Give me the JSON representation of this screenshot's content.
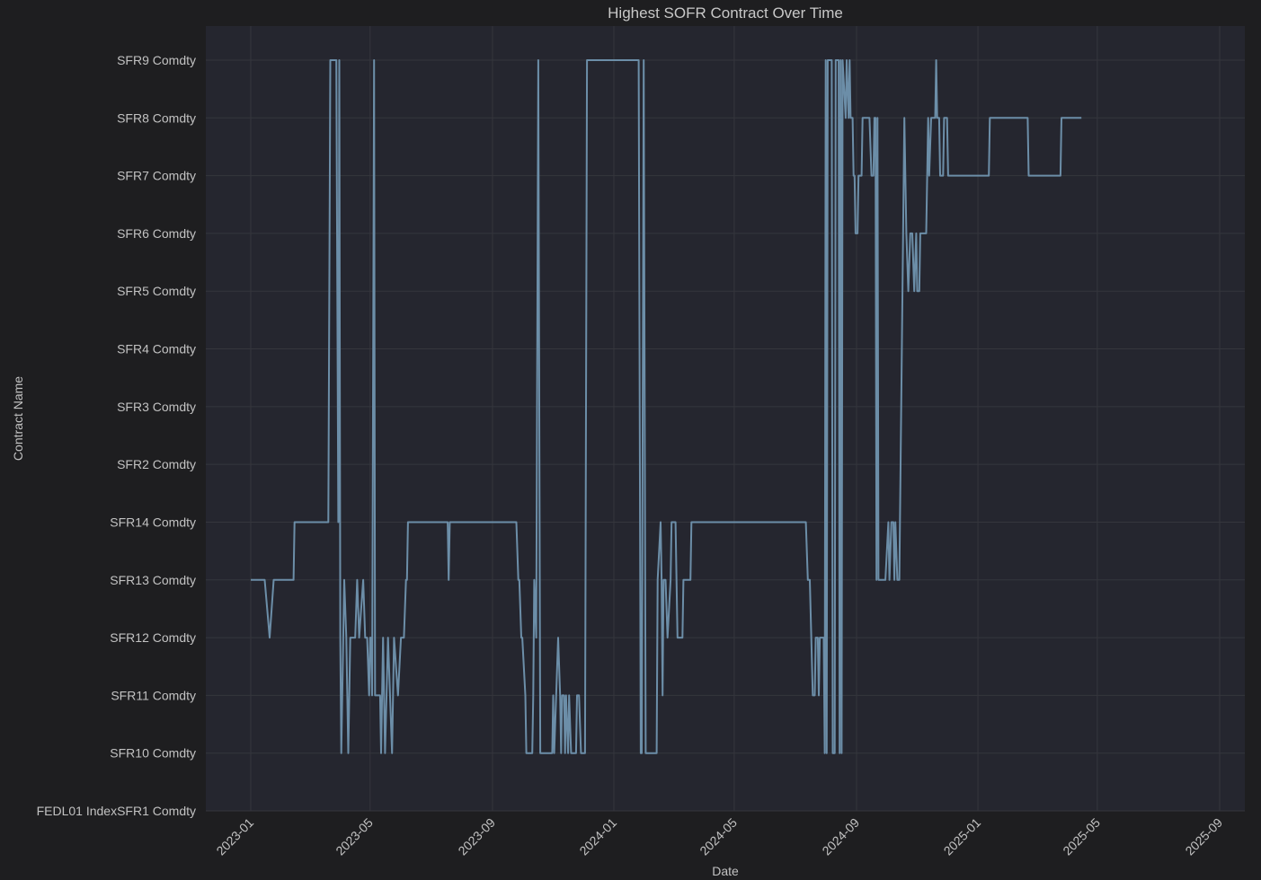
{
  "chart_data": {
    "type": "line",
    "title": "Highest SOFR Contract Over Time",
    "xlabel": "Date",
    "ylabel": "Contract Name",
    "x_axis_type": "date",
    "x_range": [
      "2022-12-01",
      "2025-09-10"
    ],
    "x_ticks": [
      "2023-01",
      "2023-05",
      "2023-09",
      "2024-01",
      "2024-05",
      "2024-09",
      "2025-01",
      "2025-05",
      "2025-09"
    ],
    "y_axis_type": "category",
    "categories": [
      "FEDL01   IndexSFR1 Comdty",
      "SFR10 Comdty",
      "SFR11 Comdty",
      "SFR12 Comdty",
      "SFR13 Comdty",
      "SFR14 Comdty",
      "SFR2 Comdty",
      "SFR3 Comdty",
      "SFR4 Comdty",
      "SFR5 Comdty",
      "SFR6 Comdty",
      "SFR7 Comdty",
      "SFR8 Comdty",
      "SFR9 Comdty"
    ],
    "grid": true,
    "legend": "none",
    "colors": {
      "line": "#6c8ea8",
      "plot_background": "#25262f",
      "figure_background": "#1e1e20",
      "grid": "#35363d",
      "text": "#c2c2c2"
    },
    "series": [
      {
        "points": [
          [
            "2023-01-01",
            "SFR13 Comdty"
          ],
          [
            "2023-01-15",
            "SFR13 Comdty"
          ],
          [
            "2023-01-20",
            "SFR12 Comdty"
          ],
          [
            "2023-01-24",
            "SFR13 Comdty"
          ],
          [
            "2023-02-13",
            "SFR13 Comdty"
          ],
          [
            "2023-02-14",
            "SFR14 Comdty"
          ],
          [
            "2023-03-20",
            "SFR14 Comdty"
          ],
          [
            "2023-03-22",
            "SFR9 Comdty"
          ],
          [
            "2023-03-28",
            "SFR9 Comdty"
          ],
          [
            "2023-03-30",
            "SFR14 Comdty"
          ],
          [
            "2023-03-31",
            "SFR9 Comdty"
          ],
          [
            "2023-04-01",
            "SFR12 Comdty"
          ],
          [
            "2023-04-02",
            "SFR10 Comdty"
          ],
          [
            "2023-04-04",
            "SFR12 Comdty"
          ],
          [
            "2023-04-05",
            "SFR13 Comdty"
          ],
          [
            "2023-04-07",
            "SFR12 Comdty"
          ],
          [
            "2023-04-09",
            "SFR10 Comdty"
          ],
          [
            "2023-04-11",
            "SFR12 Comdty"
          ],
          [
            "2023-04-16",
            "SFR12 Comdty"
          ],
          [
            "2023-04-18",
            "SFR13 Comdty"
          ],
          [
            "2023-04-20",
            "SFR12 Comdty"
          ],
          [
            "2023-04-24",
            "SFR13 Comdty"
          ],
          [
            "2023-04-26",
            "SFR12 Comdty"
          ],
          [
            "2023-04-28",
            "SFR12 Comdty"
          ],
          [
            "2023-04-30",
            "SFR11 Comdty"
          ],
          [
            "2023-05-01",
            "SFR12 Comdty"
          ],
          [
            "2023-05-02",
            "SFR12 Comdty"
          ],
          [
            "2023-05-03",
            "SFR11 Comdty"
          ],
          [
            "2023-05-05",
            "SFR9 Comdty"
          ],
          [
            "2023-05-06",
            "SFR11 Comdty"
          ],
          [
            "2023-05-11",
            "SFR11 Comdty"
          ],
          [
            "2023-05-12",
            "SFR10 Comdty"
          ],
          [
            "2023-05-14",
            "SFR12 Comdty"
          ],
          [
            "2023-05-16",
            "SFR10 Comdty"
          ],
          [
            "2023-05-19",
            "SFR12 Comdty"
          ],
          [
            "2023-05-23",
            "SFR10 Comdty"
          ],
          [
            "2023-05-25",
            "SFR12 Comdty"
          ],
          [
            "2023-05-29",
            "SFR11 Comdty"
          ],
          [
            "2023-06-01",
            "SFR12 Comdty"
          ],
          [
            "2023-06-04",
            "SFR12 Comdty"
          ],
          [
            "2023-06-06",
            "SFR13 Comdty"
          ],
          [
            "2023-06-07",
            "SFR13 Comdty"
          ],
          [
            "2023-06-08",
            "SFR14 Comdty"
          ],
          [
            "2023-07-18",
            "SFR14 Comdty"
          ],
          [
            "2023-07-19",
            "SFR13 Comdty"
          ],
          [
            "2023-07-20",
            "SFR14 Comdty"
          ],
          [
            "2023-09-25",
            "SFR14 Comdty"
          ],
          [
            "2023-09-27",
            "SFR13 Comdty"
          ],
          [
            "2023-09-28",
            "SFR13 Comdty"
          ],
          [
            "2023-09-30",
            "SFR12 Comdty"
          ],
          [
            "2023-10-01",
            "SFR12 Comdty"
          ],
          [
            "2023-10-04",
            "SFR11 Comdty"
          ],
          [
            "2023-10-05",
            "SFR10 Comdty"
          ],
          [
            "2023-10-11",
            "SFR10 Comdty"
          ],
          [
            "2023-10-12",
            "SFR11 Comdty"
          ],
          [
            "2023-10-13",
            "SFR13 Comdty"
          ],
          [
            "2023-10-15",
            "SFR12 Comdty"
          ],
          [
            "2023-10-17",
            "SFR9 Comdty"
          ],
          [
            "2023-10-19",
            "SFR10 Comdty"
          ],
          [
            "2023-10-31",
            "SFR10 Comdty"
          ],
          [
            "2023-11-01",
            "SFR11 Comdty"
          ],
          [
            "2023-11-02",
            "SFR10 Comdty"
          ],
          [
            "2023-11-04",
            "SFR11 Comdty"
          ],
          [
            "2023-11-06",
            "SFR12 Comdty"
          ],
          [
            "2023-11-08",
            "SFR11 Comdty"
          ],
          [
            "2023-11-09",
            "SFR10 Comdty"
          ],
          [
            "2023-11-10",
            "SFR11 Comdty"
          ],
          [
            "2023-11-12",
            "SFR11 Comdty"
          ],
          [
            "2023-11-13",
            "SFR10 Comdty"
          ],
          [
            "2023-11-14",
            "SFR11 Comdty"
          ],
          [
            "2023-11-16",
            "SFR10 Comdty"
          ],
          [
            "2023-11-17",
            "SFR11 Comdty"
          ],
          [
            "2023-11-19",
            "SFR10 Comdty"
          ],
          [
            "2023-11-24",
            "SFR10 Comdty"
          ],
          [
            "2023-11-25",
            "SFR11 Comdty"
          ],
          [
            "2023-11-27",
            "SFR11 Comdty"
          ],
          [
            "2023-11-29",
            "SFR10 Comdty"
          ],
          [
            "2023-12-03",
            "SFR10 Comdty"
          ],
          [
            "2023-12-05",
            "SFR9 Comdty"
          ],
          [
            "2024-01-26",
            "SFR9 Comdty"
          ],
          [
            "2024-01-28",
            "SFR10 Comdty"
          ],
          [
            "2024-01-29",
            "SFR10 Comdty"
          ],
          [
            "2024-01-31",
            "SFR9 Comdty"
          ],
          [
            "2024-02-02",
            "SFR10 Comdty"
          ],
          [
            "2024-02-13",
            "SFR10 Comdty"
          ],
          [
            "2024-02-14",
            "SFR13 Comdty"
          ],
          [
            "2024-02-17",
            "SFR14 Comdty"
          ],
          [
            "2024-02-18",
            "SFR13 Comdty"
          ],
          [
            "2024-02-19",
            "SFR11 Comdty"
          ],
          [
            "2024-02-20",
            "SFR13 Comdty"
          ],
          [
            "2024-02-22",
            "SFR13 Comdty"
          ],
          [
            "2024-02-24",
            "SFR12 Comdty"
          ],
          [
            "2024-02-27",
            "SFR13 Comdty"
          ],
          [
            "2024-02-28",
            "SFR14 Comdty"
          ],
          [
            "2024-03-03",
            "SFR14 Comdty"
          ],
          [
            "2024-03-05",
            "SFR12 Comdty"
          ],
          [
            "2024-03-10",
            "SFR12 Comdty"
          ],
          [
            "2024-03-11",
            "SFR13 Comdty"
          ],
          [
            "2024-03-18",
            "SFR13 Comdty"
          ],
          [
            "2024-03-19",
            "SFR14 Comdty"
          ],
          [
            "2024-07-12",
            "SFR14 Comdty"
          ],
          [
            "2024-07-14",
            "SFR13 Comdty"
          ],
          [
            "2024-07-16",
            "SFR13 Comdty"
          ],
          [
            "2024-07-19",
            "SFR11 Comdty"
          ],
          [
            "2024-07-21",
            "SFR11 Comdty"
          ],
          [
            "2024-07-22",
            "SFR12 Comdty"
          ],
          [
            "2024-07-24",
            "SFR12 Comdty"
          ],
          [
            "2024-07-25",
            "SFR11 Comdty"
          ],
          [
            "2024-07-26",
            "SFR12 Comdty"
          ],
          [
            "2024-07-30",
            "SFR12 Comdty"
          ],
          [
            "2024-07-31",
            "SFR10 Comdty"
          ],
          [
            "2024-08-01",
            "SFR9 Comdty"
          ],
          [
            "2024-08-02",
            "SFR10 Comdty"
          ],
          [
            "2024-08-03",
            "SFR9 Comdty"
          ],
          [
            "2024-08-07",
            "SFR9 Comdty"
          ],
          [
            "2024-08-08",
            "SFR10 Comdty"
          ],
          [
            "2024-08-10",
            "SFR10 Comdty"
          ],
          [
            "2024-08-11",
            "SFR9 Comdty"
          ],
          [
            "2024-08-14",
            "SFR9 Comdty"
          ],
          [
            "2024-08-15",
            "SFR10 Comdty"
          ],
          [
            "2024-08-16",
            "SFR9 Comdty"
          ],
          [
            "2024-08-17",
            "SFR10 Comdty"
          ],
          [
            "2024-08-18",
            "SFR9 Comdty"
          ],
          [
            "2024-08-21",
            "SFR8 Comdty"
          ],
          [
            "2024-08-22",
            "SFR9 Comdty"
          ],
          [
            "2024-08-24",
            "SFR8 Comdty"
          ],
          [
            "2024-08-25",
            "SFR9 Comdty"
          ],
          [
            "2024-08-26",
            "SFR8 Comdty"
          ],
          [
            "2024-08-28",
            "SFR8 Comdty"
          ],
          [
            "2024-08-29",
            "SFR7 Comdty"
          ],
          [
            "2024-08-30",
            "SFR7 Comdty"
          ],
          [
            "2024-08-31",
            "SFR6 Comdty"
          ],
          [
            "2024-09-02",
            "SFR6 Comdty"
          ],
          [
            "2024-09-03",
            "SFR7 Comdty"
          ],
          [
            "2024-09-06",
            "SFR7 Comdty"
          ],
          [
            "2024-09-07",
            "SFR8 Comdty"
          ],
          [
            "2024-09-14",
            "SFR8 Comdty"
          ],
          [
            "2024-09-16",
            "SFR7 Comdty"
          ],
          [
            "2024-09-18",
            "SFR7 Comdty"
          ],
          [
            "2024-09-19",
            "SFR8 Comdty"
          ],
          [
            "2024-09-20",
            "SFR8 Comdty"
          ],
          [
            "2024-09-21",
            "SFR13 Comdty"
          ],
          [
            "2024-09-22",
            "SFR8 Comdty"
          ],
          [
            "2024-09-23",
            "SFR13 Comdty"
          ],
          [
            "2024-09-30",
            "SFR13 Comdty"
          ],
          [
            "2024-10-03",
            "SFR14 Comdty"
          ],
          [
            "2024-10-04",
            "SFR13 Comdty"
          ],
          [
            "2024-10-06",
            "SFR14 Comdty"
          ],
          [
            "2024-10-08",
            "SFR14 Comdty"
          ],
          [
            "2024-10-09",
            "SFR13 Comdty"
          ],
          [
            "2024-10-10",
            "SFR14 Comdty"
          ],
          [
            "2024-10-12",
            "SFR13 Comdty"
          ],
          [
            "2024-10-14",
            "SFR13 Comdty"
          ],
          [
            "2024-10-19",
            "SFR8 Comdty"
          ],
          [
            "2024-10-21",
            "SFR6 Comdty"
          ],
          [
            "2024-10-23",
            "SFR5 Comdty"
          ],
          [
            "2024-10-25",
            "SFR6 Comdty"
          ],
          [
            "2024-10-27",
            "SFR6 Comdty"
          ],
          [
            "2024-10-29",
            "SFR5 Comdty"
          ],
          [
            "2024-10-31",
            "SFR6 Comdty"
          ],
          [
            "2024-11-01",
            "SFR5 Comdty"
          ],
          [
            "2024-11-03",
            "SFR5 Comdty"
          ],
          [
            "2024-11-04",
            "SFR6 Comdty"
          ],
          [
            "2024-11-10",
            "SFR6 Comdty"
          ],
          [
            "2024-11-11",
            "SFR7 Comdty"
          ],
          [
            "2024-11-12",
            "SFR8 Comdty"
          ],
          [
            "2024-11-13",
            "SFR7 Comdty"
          ],
          [
            "2024-11-15",
            "SFR8 Comdty"
          ],
          [
            "2024-11-19",
            "SFR8 Comdty"
          ],
          [
            "2024-11-20",
            "SFR9 Comdty"
          ],
          [
            "2024-11-21",
            "SFR8 Comdty"
          ],
          [
            "2024-11-23",
            "SFR8 Comdty"
          ],
          [
            "2024-11-24",
            "SFR7 Comdty"
          ],
          [
            "2024-11-27",
            "SFR7 Comdty"
          ],
          [
            "2024-11-28",
            "SFR8 Comdty"
          ],
          [
            "2024-12-01",
            "SFR8 Comdty"
          ],
          [
            "2024-12-02",
            "SFR7 Comdty"
          ],
          [
            "2025-01-12",
            "SFR7 Comdty"
          ],
          [
            "2025-01-13",
            "SFR8 Comdty"
          ],
          [
            "2025-02-20",
            "SFR8 Comdty"
          ],
          [
            "2025-02-21",
            "SFR7 Comdty"
          ],
          [
            "2025-03-25",
            "SFR7 Comdty"
          ],
          [
            "2025-03-26",
            "SFR8 Comdty"
          ],
          [
            "2025-04-15",
            "SFR8 Comdty"
          ]
        ]
      }
    ]
  }
}
